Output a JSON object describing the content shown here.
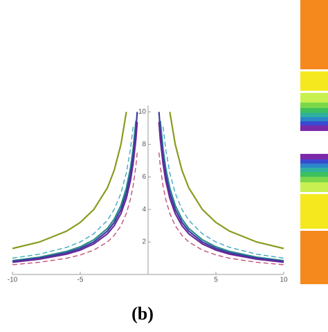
{
  "chart_data": {
    "type": "line",
    "caption": "(b)",
    "x": [
      -10,
      -8,
      -6,
      -5,
      -4,
      -3,
      -2.5,
      -2,
      -1.6,
      -1.3,
      -1.1,
      -0.9,
      -0.8,
      0,
      0.8,
      0.9,
      1.1,
      1.3,
      1.6,
      2,
      2.5,
      3,
      4,
      5,
      6,
      8,
      10
    ],
    "series": [
      {
        "color": "#8a9a1e",
        "dashed": false,
        "values": [
          1.6,
          2,
          2.67,
          3.2,
          4,
          5.33,
          6.4,
          8,
          10,
          null,
          null,
          null,
          null,
          null,
          null,
          null,
          null,
          null,
          10,
          8,
          6.4,
          5.33,
          4,
          3.2,
          2.67,
          2,
          1.6
        ]
      },
      {
        "color": "#2a8a8a",
        "dashed": false,
        "values": [
          0.85,
          1.06,
          1.42,
          1.7,
          2.13,
          2.83,
          3.4,
          4.25,
          5.31,
          6.54,
          7.73,
          9.44,
          null,
          null,
          null,
          9.44,
          7.73,
          6.54,
          5.31,
          4.25,
          3.4,
          2.83,
          2.13,
          1.7,
          1.42,
          1.06,
          0.85
        ]
      },
      {
        "color": "#3a3aa0",
        "dashed": false,
        "values": [
          0.8,
          1,
          1.33,
          1.6,
          2,
          2.67,
          3.2,
          4,
          5,
          6.15,
          7.27,
          8.89,
          10,
          null,
          10,
          8.89,
          7.27,
          6.15,
          5,
          4,
          3.2,
          2.67,
          2,
          1.6,
          1.33,
          1,
          0.8
        ]
      },
      {
        "color": "#6a2a9a",
        "dashed": false,
        "values": [
          0.75,
          0.94,
          1.25,
          1.5,
          1.88,
          2.5,
          3,
          3.75,
          4.69,
          5.77,
          6.82,
          8.33,
          9.38,
          null,
          9.38,
          8.33,
          6.82,
          5.77,
          4.69,
          3.75,
          3,
          2.5,
          1.88,
          1.5,
          1.25,
          0.94,
          0.75
        ]
      },
      {
        "color": "#c0507a",
        "dashed": true,
        "values": [
          0.6,
          0.75,
          1,
          1.2,
          1.5,
          2,
          2.4,
          3,
          3.75,
          4.62,
          5.45,
          6.67,
          7.5,
          null,
          7.5,
          6.67,
          5.45,
          4.62,
          3.75,
          3,
          2.4,
          2,
          1.5,
          1.2,
          1,
          0.75,
          0.6
        ]
      },
      {
        "color": "#40a8c0",
        "dashed": true,
        "values": [
          1,
          1.25,
          1.67,
          2,
          2.5,
          3.33,
          4,
          5,
          6.25,
          7.69,
          9.09,
          null,
          null,
          null,
          null,
          null,
          9.09,
          7.69,
          6.25,
          5,
          4,
          3.33,
          2.5,
          2,
          1.67,
          1.25,
          1
        ]
      }
    ],
    "xlim": [
      -10,
      10
    ],
    "xticks": [
      -10,
      -5,
      5,
      10
    ],
    "ylim": [
      0,
      10.4
    ],
    "yticks": [
      2,
      4,
      6,
      8,
      10
    ]
  }
}
